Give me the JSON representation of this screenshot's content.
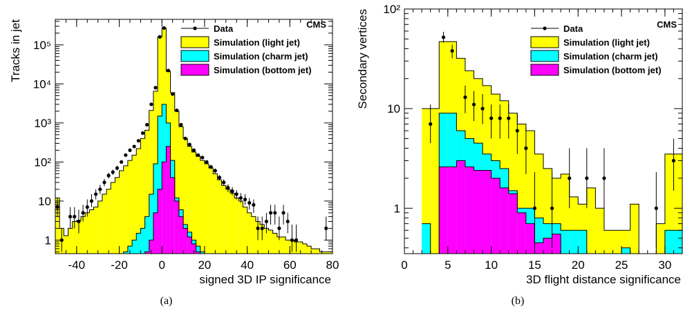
{
  "figure": {
    "colors": {
      "light": "#ffff00",
      "charm": "#00ffff",
      "bottom": "#ff00ff",
      "data": "#000000"
    }
  },
  "chart_data": [
    {
      "id": "a",
      "type": "histogram",
      "caption": "(a)",
      "xlabel": "signed 3D IP significance",
      "ylabel": "Tracks in jet",
      "experiment_label": "CMS",
      "log_y": true,
      "xlim": [
        -50,
        80
      ],
      "ylim": [
        0.45,
        450000
      ],
      "x_ticks": [
        -40,
        -20,
        0,
        20,
        40,
        60,
        80
      ],
      "y_ticks": [
        {
          "value": 1,
          "label": "1"
        },
        {
          "value": 10,
          "label": "10"
        },
        {
          "value": 100,
          "label": "10²"
        },
        {
          "value": 1000,
          "label": "10³"
        },
        {
          "value": 10000,
          "label": "10⁴"
        },
        {
          "value": 100000,
          "label": "10⁵"
        }
      ],
      "legend_position": "top-right",
      "legend": [
        {
          "label": "Data",
          "kind": "marker"
        },
        {
          "label": "Simulation (light jet)",
          "kind": "fill",
          "color": "#ffff00"
        },
        {
          "label": "Simulation (charm jet)",
          "kind": "fill",
          "color": "#00ffff"
        },
        {
          "label": "Simulation (bottom jet)",
          "kind": "fill",
          "color": "#ff00ff"
        }
      ],
      "bin_edges": [
        -50,
        -48,
        -46,
        -44,
        -42,
        -40,
        -38,
        -36,
        -34,
        -32,
        -30,
        -28,
        -26,
        -24,
        -22,
        -20,
        -18,
        -16,
        -14,
        -12,
        -10,
        -8,
        -6,
        -4,
        -2,
        0,
        2,
        4,
        6,
        8,
        10,
        12,
        14,
        16,
        18,
        20,
        22,
        24,
        26,
        28,
        30,
        32,
        34,
        36,
        38,
        40,
        42,
        44,
        46,
        48,
        50,
        52,
        54,
        56,
        58,
        60,
        62,
        64,
        66,
        68,
        70,
        72,
        74,
        76,
        78,
        80
      ],
      "series": [
        {
          "name": "Simulation (light jet)",
          "color": "#ffff00",
          "stacked_total": [
            12,
            2,
            1.3,
            2,
            3,
            3.2,
            4,
            5,
            6,
            7,
            10,
            15,
            20,
            30,
            40,
            60,
            80,
            110,
            150,
            220,
            400,
            650,
            2100,
            6500,
            160000,
            270000,
            21000,
            6000,
            2000,
            800,
            400,
            250,
            180,
            140,
            110,
            90,
            70,
            50,
            35,
            25,
            20,
            16,
            12,
            10,
            7,
            5,
            4,
            3,
            2.5,
            2,
            1.8,
            1.5,
            1.2,
            1.2,
            1,
            1,
            0.9,
            0.9,
            0.8,
            0.7,
            0.6,
            0.6,
            0.5,
            0.5,
            0.5
          ]
        },
        {
          "name": "Simulation (charm jet)",
          "color": "#00ffff",
          "stacked_total": [
            0,
            0,
            0,
            0,
            0,
            0,
            0,
            0,
            0,
            0,
            0,
            0,
            0,
            0,
            0,
            0,
            0.5,
            0.7,
            1,
            1.5,
            2,
            4,
            15,
            90,
            1500,
            3000,
            1000,
            110,
            12,
            6,
            2.5,
            1.6,
            1,
            0.7,
            0.5,
            0,
            0,
            0,
            0,
            0,
            0,
            0,
            0,
            0,
            0,
            0,
            0,
            0,
            0,
            0,
            0,
            0,
            0,
            0,
            0,
            0,
            0,
            0,
            0,
            0,
            0,
            0,
            0,
            0,
            0
          ]
        },
        {
          "name": "Simulation (bottom jet)",
          "color": "#ff00ff",
          "stacked_total": [
            0,
            0,
            0,
            0,
            0,
            0,
            0,
            0,
            0,
            0,
            0,
            0,
            0,
            0,
            0,
            0,
            0,
            0,
            0,
            0,
            0,
            0.5,
            1,
            5,
            20,
            100,
            250,
            40,
            10,
            4,
            2,
            1.2,
            0.8,
            0.5,
            0,
            0,
            0,
            0,
            0,
            0,
            0,
            0,
            0,
            0,
            0,
            0,
            0,
            0,
            0,
            0,
            0,
            0,
            0,
            0,
            0,
            0,
            0,
            0,
            0,
            0,
            0,
            0,
            0,
            0,
            0
          ]
        }
      ],
      "data_points": [
        {
          "x": -49,
          "y": 7,
          "err": [
            4,
            12
          ]
        },
        {
          "x": -47,
          "y": 1,
          "err": [
            0.5,
            2
          ]
        },
        {
          "x": -43,
          "y": 4,
          "err": [
            2,
            7
          ]
        },
        {
          "x": -41,
          "y": 4,
          "err": [
            2,
            7
          ]
        },
        {
          "x": -39,
          "y": 3,
          "err": [
            1.5,
            6
          ]
        },
        {
          "x": -37,
          "y": 5,
          "err": [
            3,
            8
          ]
        },
        {
          "x": -35,
          "y": 7,
          "err": [
            4,
            11
          ]
        },
        {
          "x": -33,
          "y": 10,
          "err": [
            7,
            15
          ]
        },
        {
          "x": -31,
          "y": 15,
          "err": [
            11,
            20
          ]
        },
        {
          "x": -29,
          "y": 20,
          "err": [
            15,
            26
          ]
        },
        {
          "x": -27,
          "y": 30,
          "err": [
            24,
            37
          ]
        },
        {
          "x": -25,
          "y": 45,
          "err": [
            38,
            53
          ]
        },
        {
          "x": -23,
          "y": 55,
          "err": [
            47,
            64
          ]
        },
        {
          "x": -21,
          "y": 70,
          "err": [
            61,
            80
          ]
        },
        {
          "x": -19,
          "y": 100,
          "err": [
            90,
            111
          ]
        },
        {
          "x": -17,
          "y": 150,
          "err": [
            138,
            163
          ]
        },
        {
          "x": -15,
          "y": 200,
          "err": [
            186,
            215
          ]
        },
        {
          "x": -13,
          "y": 250,
          "err": [
            235,
            266
          ]
        },
        {
          "x": -11,
          "y": 350,
          "err": [
            332,
            369
          ]
        },
        {
          "x": -9,
          "y": 550,
          "err": [
            527,
            574
          ]
        },
        {
          "x": -7,
          "y": 900,
          "err": [
            870,
            930
          ]
        },
        {
          "x": -5,
          "y": 3000,
          "err": [
            2945,
            3055
          ]
        },
        {
          "x": -3,
          "y": 8000,
          "err": [
            7911,
            8089
          ]
        },
        {
          "x": -1,
          "y": 160000,
          "err": [
            159600,
            160400
          ]
        },
        {
          "x": 1,
          "y": 270000,
          "err": [
            269480,
            270520
          ]
        },
        {
          "x": 3,
          "y": 22000,
          "err": [
            21850,
            22150
          ]
        },
        {
          "x": 5,
          "y": 5500,
          "err": [
            5426,
            5574
          ]
        },
        {
          "x": 7,
          "y": 2100,
          "err": [
            2054,
            2146
          ]
        },
        {
          "x": 9,
          "y": 900,
          "err": [
            870,
            930
          ]
        },
        {
          "x": 11,
          "y": 400,
          "err": [
            380,
            420
          ]
        },
        {
          "x": 13,
          "y": 280,
          "err": [
            263,
            297
          ]
        },
        {
          "x": 15,
          "y": 200,
          "err": [
            186,
            214
          ]
        },
        {
          "x": 17,
          "y": 150,
          "err": [
            138,
            162
          ]
        },
        {
          "x": 19,
          "y": 130,
          "err": [
            119,
            141
          ]
        },
        {
          "x": 21,
          "y": 100,
          "err": [
            90,
            110
          ]
        },
        {
          "x": 23,
          "y": 75,
          "err": [
            66,
            84
          ]
        },
        {
          "x": 25,
          "y": 60,
          "err": [
            52,
            68
          ]
        },
        {
          "x": 27,
          "y": 40,
          "err": [
            34,
            46
          ]
        },
        {
          "x": 29,
          "y": 30,
          "err": [
            25,
            36
          ]
        },
        {
          "x": 31,
          "y": 22,
          "err": [
            17,
            27
          ]
        },
        {
          "x": 33,
          "y": 18,
          "err": [
            14,
            23
          ]
        },
        {
          "x": 35,
          "y": 15,
          "err": [
            11,
            19
          ]
        },
        {
          "x": 37,
          "y": 12,
          "err": [
            9,
            16
          ]
        },
        {
          "x": 39,
          "y": 11,
          "err": [
            8,
            15
          ]
        },
        {
          "x": 41,
          "y": 9,
          "err": [
            6,
            12
          ]
        },
        {
          "x": 43,
          "y": 8,
          "err": [
            5,
            11
          ]
        },
        {
          "x": 45,
          "y": 2,
          "err": [
            1,
            4
          ]
        },
        {
          "x": 47,
          "y": 2,
          "err": [
            1,
            4
          ]
        },
        {
          "x": 49,
          "y": 3,
          "err": [
            1.5,
            5
          ]
        },
        {
          "x": 51,
          "y": 5,
          "err": [
            2.5,
            8
          ]
        },
        {
          "x": 53,
          "y": 5,
          "err": [
            2.5,
            8
          ]
        },
        {
          "x": 55,
          "y": 2,
          "err": [
            1,
            4
          ]
        },
        {
          "x": 57,
          "y": 5,
          "err": [
            2.5,
            8
          ]
        },
        {
          "x": 59,
          "y": 3,
          "err": [
            1.5,
            5
          ]
        },
        {
          "x": 61,
          "y": 1,
          "err": [
            0.5,
            2.5
          ]
        },
        {
          "x": 63,
          "y": 1,
          "err": [
            0.5,
            2.5
          ]
        },
        {
          "x": 77,
          "y": 2,
          "err": [
            1,
            4
          ]
        }
      ]
    },
    {
      "id": "b",
      "type": "histogram",
      "caption": "(b)",
      "xlabel": "3D flight distance significance",
      "ylabel": "Secondary vertices",
      "experiment_label": "CMS",
      "log_y": true,
      "xlim": [
        0,
        32
      ],
      "ylim": [
        0.35,
        100
      ],
      "x_ticks": [
        0,
        5,
        10,
        15,
        20,
        25,
        30
      ],
      "y_ticks": [
        {
          "value": 1,
          "label": "1"
        },
        {
          "value": 10,
          "label": "10"
        },
        {
          "value": 100,
          "label": "10²"
        }
      ],
      "legend_position": "top-right",
      "legend": [
        {
          "label": "Data",
          "kind": "marker"
        },
        {
          "label": "Simulation (light jet)",
          "kind": "fill",
          "color": "#ffff00"
        },
        {
          "label": "Simulation (charm jet)",
          "kind": "fill",
          "color": "#00ffff"
        },
        {
          "label": "Simulation (bottom jet)",
          "kind": "fill",
          "color": "#ff00ff"
        }
      ],
      "bin_edges": [
        2,
        3,
        4,
        5,
        6,
        7,
        8,
        9,
        10,
        11,
        12,
        13,
        14,
        15,
        16,
        17,
        18,
        19,
        20,
        21,
        22,
        23,
        24,
        25,
        26,
        27,
        28,
        29,
        30,
        31,
        32
      ],
      "series": [
        {
          "name": "Simulation (light jet)",
          "color": "#ffff00",
          "stacked_total": [
            10,
            10,
            47,
            47,
            32,
            24,
            20,
            17,
            14,
            12,
            9,
            7,
            6,
            3.5,
            2.5,
            2,
            2.2,
            1.3,
            1.1,
            1.6,
            1,
            0.6,
            0.6,
            0.6,
            1.1,
            0,
            0,
            0.7,
            3.5,
            3.5
          ]
        },
        {
          "name": "Simulation (charm jet)",
          "color": "#00ffff",
          "stacked_total": [
            0.7,
            0,
            9,
            9,
            6,
            5,
            4.5,
            3.5,
            3,
            2.5,
            1.5,
            1,
            1,
            0.8,
            0.7,
            0.7,
            0.6,
            0.6,
            0.6,
            0,
            0,
            0,
            0,
            0.4,
            0,
            0,
            0,
            0,
            0.6,
            0.6
          ]
        },
        {
          "name": "Simulation (bottom jet)",
          "color": "#ff00ff",
          "stacked_total": [
            0,
            0,
            2.6,
            2.6,
            3,
            2.6,
            2.4,
            2.4,
            2,
            1.6,
            1.4,
            0.9,
            0.7,
            0.45,
            0.5,
            0.55,
            0,
            0,
            0,
            0,
            0,
            0,
            0,
            0,
            0,
            0,
            0,
            0,
            0,
            0
          ]
        }
      ],
      "data_points": [
        {
          "x": 3,
          "y": 7,
          "err": [
            4.5,
            11
          ]
        },
        {
          "x": 4.5,
          "y": 52,
          "err": [
            46,
            59
          ]
        },
        {
          "x": 5.5,
          "y": 38,
          "err": [
            32,
            44
          ]
        },
        {
          "x": 7,
          "y": 13,
          "err": [
            9,
            17
          ]
        },
        {
          "x": 8,
          "y": 11,
          "err": [
            7.5,
            15
          ]
        },
        {
          "x": 9,
          "y": 10,
          "err": [
            7,
            14
          ]
        },
        {
          "x": 10,
          "y": 8,
          "err": [
            5,
            11
          ]
        },
        {
          "x": 11,
          "y": 8,
          "err": [
            5,
            11
          ]
        },
        {
          "x": 12,
          "y": 8,
          "err": [
            5,
            11
          ]
        },
        {
          "x": 13,
          "y": 6,
          "err": [
            3.5,
            9
          ]
        },
        {
          "x": 14,
          "y": 4,
          "err": [
            2.2,
            6.5
          ]
        },
        {
          "x": 15,
          "y": 1,
          "err": [
            0.4,
            2.3
          ]
        },
        {
          "x": 17,
          "y": 1,
          "err": [
            0.4,
            2.3
          ]
        },
        {
          "x": 19,
          "y": 2,
          "err": [
            1,
            4
          ]
        },
        {
          "x": 21,
          "y": 2,
          "err": [
            1,
            4
          ]
        },
        {
          "x": 23,
          "y": 2,
          "err": [
            1,
            4
          ]
        },
        {
          "x": 29,
          "y": 1,
          "err": [
            0.4,
            2.3
          ]
        },
        {
          "x": 31,
          "y": 3,
          "err": [
            1.5,
            5
          ]
        }
      ]
    }
  ]
}
